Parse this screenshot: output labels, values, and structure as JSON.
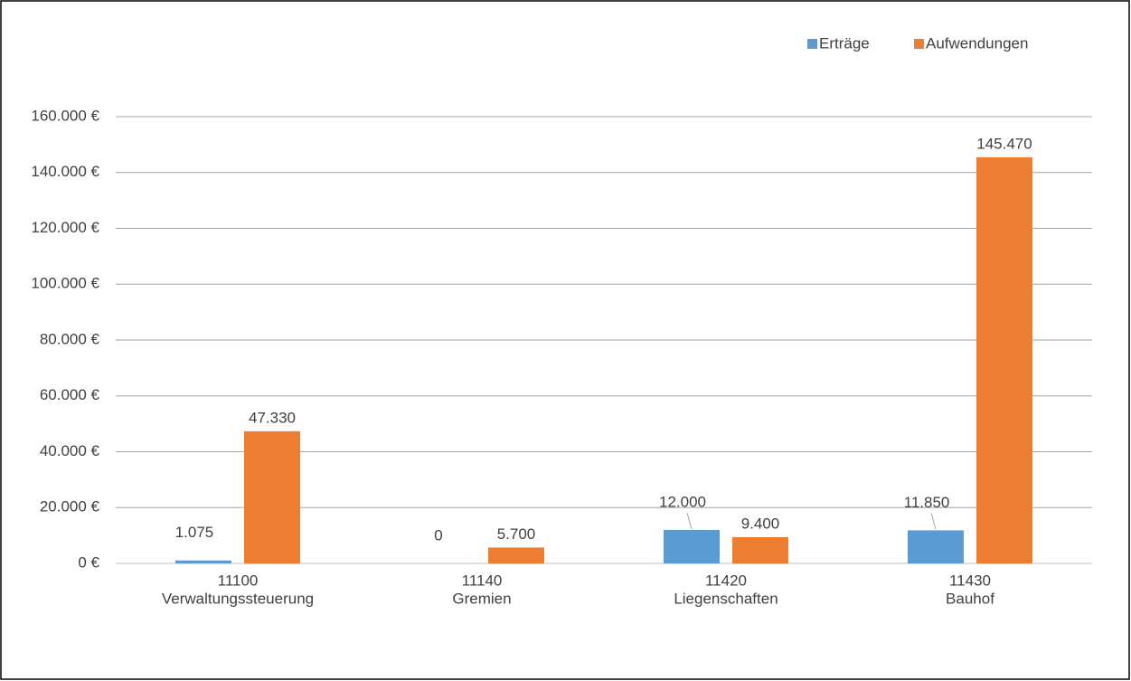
{
  "chart_data": {
    "type": "bar",
    "categories": [
      [
        "11100",
        "Verwaltungssteuerung"
      ],
      [
        "11140",
        "Gremien"
      ],
      [
        "11420",
        "Liegenschaften"
      ],
      [
        "11430",
        "Bauhof"
      ]
    ],
    "series": [
      {
        "name": "Erträge",
        "color": "#5b9bd5",
        "values": [
          1075,
          0,
          12000,
          11850
        ],
        "value_labels": [
          "1.075",
          "0",
          "12.000",
          "11.850"
        ]
      },
      {
        "name": "Aufwendungen",
        "color": "#ed7d31",
        "values": [
          47330,
          5700,
          9400,
          145470
        ],
        "value_labels": [
          "47.330",
          "5.700",
          "9.400",
          "145.470"
        ]
      }
    ],
    "ylim": [
      0,
      160000
    ],
    "yticks": [
      {
        "value": 0,
        "label": "0 €"
      },
      {
        "value": 20000,
        "label": "20.000 €"
      },
      {
        "value": 40000,
        "label": "40.000 €"
      },
      {
        "value": 60000,
        "label": "60.000 €"
      },
      {
        "value": 80000,
        "label": "80.000 €"
      },
      {
        "value": 100000,
        "label": "100.000 €"
      },
      {
        "value": 120000,
        "label": "120.000 €"
      },
      {
        "value": 140000,
        "label": "140.000 €"
      },
      {
        "value": 160000,
        "label": "160.000 €"
      }
    ],
    "grid": true,
    "legend": "top-right"
  }
}
